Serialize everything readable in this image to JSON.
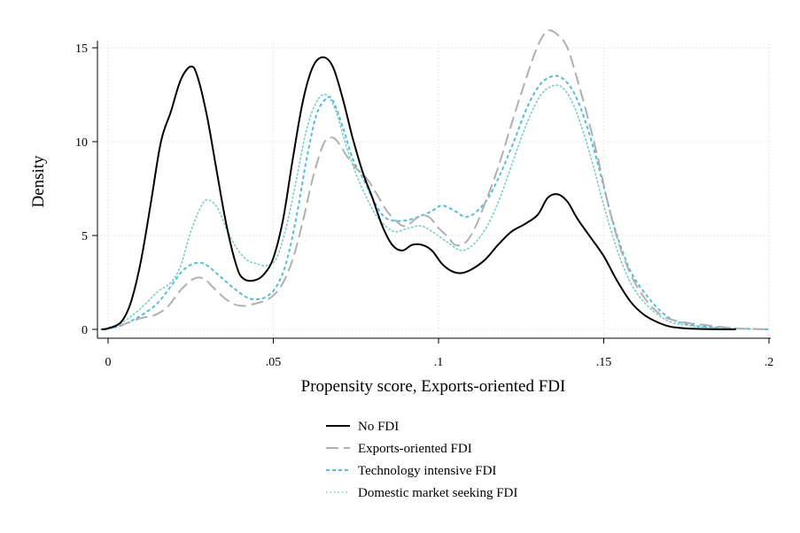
{
  "chart_data": {
    "type": "line",
    "title": "",
    "xlabel": "Propensity score, Exports-oriented FDI",
    "ylabel": "Density",
    "xlim": [
      0,
      0.2
    ],
    "ylim": [
      0,
      15
    ],
    "x_ticks": [
      {
        "value": 0,
        "label": "0"
      },
      {
        "value": 0.05,
        "label": ".05"
      },
      {
        "value": 0.1,
        "label": ".1"
      },
      {
        "value": 0.15,
        "label": ".15"
      },
      {
        "value": 0.2,
        "label": ".2"
      }
    ],
    "y_ticks": [
      {
        "value": 0,
        "label": "0"
      },
      {
        "value": 5,
        "label": "5"
      },
      {
        "value": 10,
        "label": "10"
      },
      {
        "value": 15,
        "label": "15"
      }
    ],
    "grid": true,
    "legend_position": "bottom",
    "series": [
      {
        "name": "No FDI",
        "color": "#000000",
        "dash": "solid",
        "points": [
          [
            -0.002,
            0
          ],
          [
            0,
            0.05
          ],
          [
            0.004,
            0.4
          ],
          [
            0.007,
            1.5
          ],
          [
            0.01,
            3.7
          ],
          [
            0.013,
            6.8
          ],
          [
            0.016,
            10
          ],
          [
            0.019,
            11.6
          ],
          [
            0.022,
            13.3
          ],
          [
            0.025,
            14
          ],
          [
            0.027,
            13.5
          ],
          [
            0.03,
            11.3
          ],
          [
            0.033,
            8.3
          ],
          [
            0.036,
            5.4
          ],
          [
            0.039,
            3.3
          ],
          [
            0.041,
            2.7
          ],
          [
            0.044,
            2.6
          ],
          [
            0.047,
            2.9
          ],
          [
            0.05,
            3.8
          ],
          [
            0.053,
            5.9
          ],
          [
            0.056,
            9.2
          ],
          [
            0.059,
            12.2
          ],
          [
            0.062,
            14
          ],
          [
            0.065,
            14.5
          ],
          [
            0.068,
            14
          ],
          [
            0.071,
            12.3
          ],
          [
            0.074,
            10.2
          ],
          [
            0.077,
            8.4
          ],
          [
            0.08,
            7
          ],
          [
            0.083,
            5.5
          ],
          [
            0.086,
            4.5
          ],
          [
            0.089,
            4.2
          ],
          [
            0.092,
            4.5
          ],
          [
            0.095,
            4.5
          ],
          [
            0.098,
            4.2
          ],
          [
            0.101,
            3.5
          ],
          [
            0.104,
            3.1
          ],
          [
            0.107,
            3
          ],
          [
            0.11,
            3.2
          ],
          [
            0.114,
            3.7
          ],
          [
            0.118,
            4.5
          ],
          [
            0.122,
            5.2
          ],
          [
            0.126,
            5.6
          ],
          [
            0.13,
            6.1
          ],
          [
            0.133,
            7
          ],
          [
            0.136,
            7.2
          ],
          [
            0.139,
            6.8
          ],
          [
            0.142,
            5.9
          ],
          [
            0.146,
            4.9
          ],
          [
            0.15,
            3.9
          ],
          [
            0.154,
            2.6
          ],
          [
            0.158,
            1.5
          ],
          [
            0.162,
            0.8
          ],
          [
            0.166,
            0.4
          ],
          [
            0.17,
            0.15
          ],
          [
            0.175,
            0.05
          ],
          [
            0.18,
            0.02
          ],
          [
            0.19,
            0
          ]
        ]
      },
      {
        "name": "Exports-oriented FDI",
        "color": "#b0b0b0",
        "dash": "long",
        "points": [
          [
            -0.002,
            0
          ],
          [
            0.002,
            0.1
          ],
          [
            0.006,
            0.35
          ],
          [
            0.01,
            0.6
          ],
          [
            0.014,
            0.75
          ],
          [
            0.018,
            1.2
          ],
          [
            0.022,
            2.1
          ],
          [
            0.026,
            2.7
          ],
          [
            0.029,
            2.7
          ],
          [
            0.032,
            2.2
          ],
          [
            0.035,
            1.7
          ],
          [
            0.038,
            1.35
          ],
          [
            0.041,
            1.25
          ],
          [
            0.044,
            1.35
          ],
          [
            0.047,
            1.5
          ],
          [
            0.05,
            1.8
          ],
          [
            0.053,
            2.5
          ],
          [
            0.056,
            3.8
          ],
          [
            0.059,
            5.8
          ],
          [
            0.062,
            8.1
          ],
          [
            0.065,
            9.8
          ],
          [
            0.067,
            10.2
          ],
          [
            0.069,
            10.1
          ],
          [
            0.072,
            9.3
          ],
          [
            0.075,
            8.6
          ],
          [
            0.078,
            8.1
          ],
          [
            0.081,
            7.3
          ],
          [
            0.084,
            6.4
          ],
          [
            0.087,
            5.8
          ],
          [
            0.09,
            5.5
          ],
          [
            0.094,
            6
          ],
          [
            0.097,
            6
          ],
          [
            0.1,
            5.4
          ],
          [
            0.103,
            4.9
          ],
          [
            0.105,
            4.5
          ],
          [
            0.108,
            4.6
          ],
          [
            0.111,
            5.4
          ],
          [
            0.114,
            6.7
          ],
          [
            0.118,
            8.6
          ],
          [
            0.122,
            10.9
          ],
          [
            0.126,
            13.1
          ],
          [
            0.13,
            15.1
          ],
          [
            0.133,
            15.9
          ],
          [
            0.136,
            15.7
          ],
          [
            0.139,
            15
          ],
          [
            0.142,
            13.3
          ],
          [
            0.145,
            11.4
          ],
          [
            0.148,
            9.3
          ],
          [
            0.151,
            6.9
          ],
          [
            0.154,
            4.9
          ],
          [
            0.157,
            3.4
          ],
          [
            0.16,
            2.3
          ],
          [
            0.164,
            1.3
          ],
          [
            0.168,
            0.7
          ],
          [
            0.172,
            0.45
          ],
          [
            0.177,
            0.3
          ],
          [
            0.18,
            0.25
          ],
          [
            0.19,
            0.05
          ],
          [
            0.2,
            0
          ]
        ]
      },
      {
        "name": "Technology intensive FDI",
        "color": "#57bcd8",
        "dash": "short",
        "points": [
          [
            -0.002,
            0
          ],
          [
            0.003,
            0.15
          ],
          [
            0.007,
            0.45
          ],
          [
            0.011,
            0.85
          ],
          [
            0.015,
            1.4
          ],
          [
            0.019,
            2.3
          ],
          [
            0.023,
            3.2
          ],
          [
            0.027,
            3.55
          ],
          [
            0.03,
            3.4
          ],
          [
            0.034,
            2.8
          ],
          [
            0.038,
            2.2
          ],
          [
            0.042,
            1.7
          ],
          [
            0.045,
            1.6
          ],
          [
            0.048,
            1.75
          ],
          [
            0.051,
            2.3
          ],
          [
            0.054,
            3.6
          ],
          [
            0.057,
            6
          ],
          [
            0.06,
            9
          ],
          [
            0.063,
            11.4
          ],
          [
            0.066,
            12.3
          ],
          [
            0.068,
            12.2
          ],
          [
            0.071,
            10.8
          ],
          [
            0.074,
            9.1
          ],
          [
            0.077,
            8.1
          ],
          [
            0.08,
            7
          ],
          [
            0.083,
            6.1
          ],
          [
            0.086,
            5.8
          ],
          [
            0.09,
            5.8
          ],
          [
            0.094,
            6
          ],
          [
            0.098,
            6.3
          ],
          [
            0.101,
            6.6
          ],
          [
            0.105,
            6.3
          ],
          [
            0.108,
            6
          ],
          [
            0.111,
            6.2
          ],
          [
            0.115,
            7
          ],
          [
            0.119,
            8.4
          ],
          [
            0.123,
            10.1
          ],
          [
            0.127,
            11.9
          ],
          [
            0.131,
            13.1
          ],
          [
            0.135,
            13.5
          ],
          [
            0.138,
            13.3
          ],
          [
            0.141,
            12.6
          ],
          [
            0.144,
            11.3
          ],
          [
            0.147,
            9.6
          ],
          [
            0.15,
            7.6
          ],
          [
            0.153,
            5.6
          ],
          [
            0.156,
            4
          ],
          [
            0.159,
            2.8
          ],
          [
            0.163,
            1.8
          ],
          [
            0.167,
            1
          ],
          [
            0.171,
            0.5
          ],
          [
            0.176,
            0.25
          ],
          [
            0.18,
            0.15
          ],
          [
            0.19,
            0.05
          ],
          [
            0.2,
            0
          ]
        ]
      },
      {
        "name": "Domestic market seeking FDI",
        "color": "#78cec8",
        "dash": "dot",
        "points": [
          [
            -0.002,
            0
          ],
          [
            0.003,
            0.25
          ],
          [
            0.007,
            0.7
          ],
          [
            0.011,
            1.3
          ],
          [
            0.015,
            2
          ],
          [
            0.019,
            2.5
          ],
          [
            0.022,
            3.4
          ],
          [
            0.025,
            5.2
          ],
          [
            0.028,
            6.5
          ],
          [
            0.03,
            6.9
          ],
          [
            0.033,
            6.5
          ],
          [
            0.036,
            5.3
          ],
          [
            0.039,
            4.3
          ],
          [
            0.042,
            3.7
          ],
          [
            0.045,
            3.5
          ],
          [
            0.048,
            3.4
          ],
          [
            0.051,
            3.8
          ],
          [
            0.054,
            5.5
          ],
          [
            0.057,
            8
          ],
          [
            0.06,
            10.6
          ],
          [
            0.063,
            12.1
          ],
          [
            0.066,
            12.5
          ],
          [
            0.069,
            11.6
          ],
          [
            0.072,
            9.8
          ],
          [
            0.075,
            8.3
          ],
          [
            0.078,
            7.1
          ],
          [
            0.081,
            6.1
          ],
          [
            0.084,
            5.5
          ],
          [
            0.087,
            5.2
          ],
          [
            0.091,
            5.4
          ],
          [
            0.095,
            5.5
          ],
          [
            0.099,
            5.1
          ],
          [
            0.103,
            4.6
          ],
          [
            0.107,
            4.2
          ],
          [
            0.111,
            4.6
          ],
          [
            0.115,
            5.6
          ],
          [
            0.119,
            7.2
          ],
          [
            0.123,
            9.2
          ],
          [
            0.127,
            11.1
          ],
          [
            0.131,
            12.5
          ],
          [
            0.135,
            13
          ],
          [
            0.138,
            12.8
          ],
          [
            0.141,
            11.9
          ],
          [
            0.144,
            10.4
          ],
          [
            0.147,
            8.6
          ],
          [
            0.15,
            6.6
          ],
          [
            0.153,
            4.8
          ],
          [
            0.156,
            3.3
          ],
          [
            0.159,
            2.2
          ],
          [
            0.163,
            1.3
          ],
          [
            0.167,
            0.7
          ],
          [
            0.171,
            0.35
          ],
          [
            0.176,
            0.2
          ],
          [
            0.18,
            0.12
          ],
          [
            0.19,
            0.04
          ],
          [
            0.2,
            0
          ]
        ]
      }
    ]
  }
}
